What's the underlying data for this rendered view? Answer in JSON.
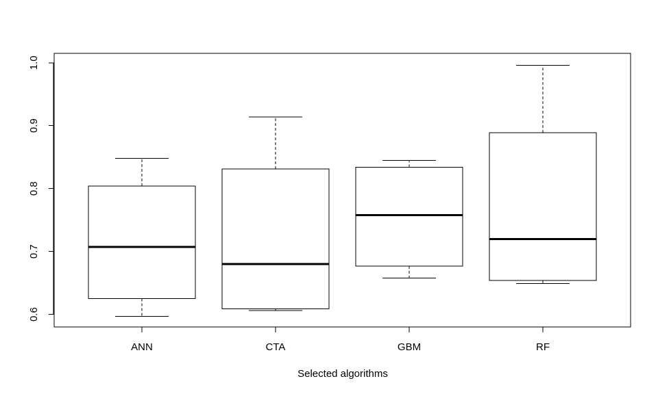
{
  "chart_data": {
    "type": "boxplot",
    "xlabel": "Selected algorithms",
    "ylabel": "",
    "ylim": [
      0.58,
      1.015
    ],
    "yticks": [
      0.6,
      0.7,
      0.8,
      0.9,
      1.0
    ],
    "ytick_labels": [
      "0.6",
      "0.7",
      "0.8",
      "0.9",
      "1.0"
    ],
    "grid": false,
    "categories": [
      "ANN",
      "CTA",
      "GBM",
      "RF"
    ],
    "boxes": [
      {
        "label": "ANN",
        "whisker_low": 0.597,
        "q1": 0.625,
        "median": 0.707,
        "q3": 0.804,
        "whisker_high": 0.848
      },
      {
        "label": "CTA",
        "whisker_low": 0.606,
        "q1": 0.609,
        "median": 0.68,
        "q3": 0.831,
        "whisker_high": 0.914
      },
      {
        "label": "GBM",
        "whisker_low": 0.658,
        "q1": 0.677,
        "median": 0.758,
        "q3": 0.834,
        "whisker_high": 0.845
      },
      {
        "label": "RF",
        "whisker_low": 0.649,
        "q1": 0.654,
        "median": 0.72,
        "q3": 0.889,
        "whisker_high": 0.996
      }
    ]
  }
}
